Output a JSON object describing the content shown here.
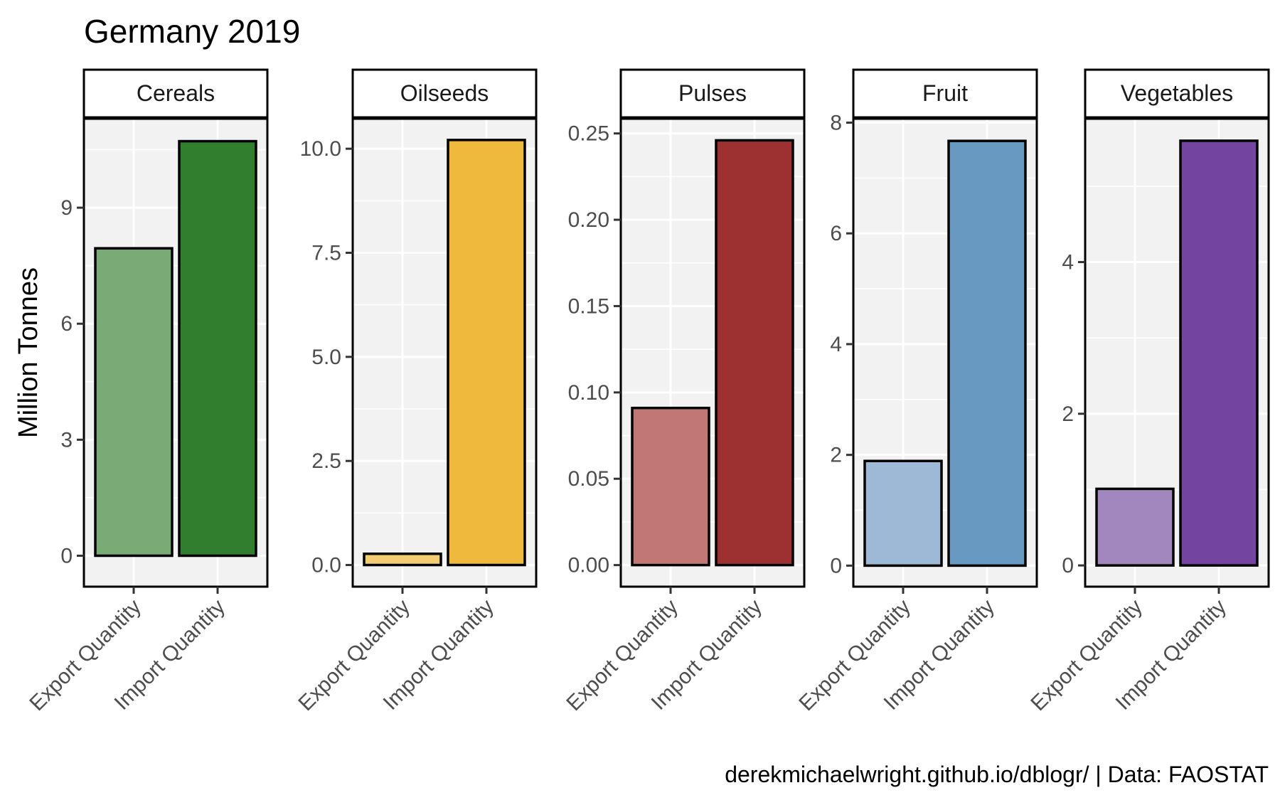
{
  "chart_data": {
    "type": "bar",
    "title": "Germany 2019",
    "ylabel": "Million Tonnes",
    "caption": "derekmichaelwright.github.io/dblogr/ | Data: FAOSTAT",
    "categories": [
      "Export Quantity",
      "Import Quantity"
    ],
    "grid": true,
    "panels": [
      {
        "name": "Cereals",
        "values": [
          7.95,
          10.72
        ],
        "ylim": [
          -0.8,
          11.3
        ],
        "yticks": [
          0,
          3,
          6,
          9
        ],
        "ytick_labels": [
          "0",
          "3",
          "6",
          "9"
        ],
        "colors": [
          "#7aab76",
          "#317e2f"
        ]
      },
      {
        "name": "Oilseeds",
        "values": [
          0.27,
          10.21
        ],
        "ylim": [
          -0.52,
          10.72
        ],
        "yticks": [
          0,
          2.5,
          5,
          7.5,
          10
        ],
        "ytick_labels": [
          "0.0",
          "2.5",
          "5.0",
          "7.5",
          "10.0"
        ],
        "colors": [
          "#f3cd73",
          "#eeb93d"
        ]
      },
      {
        "name": "Pulses",
        "values": [
          0.091,
          0.246
        ],
        "ylim": [
          -0.0125,
          0.2585
        ],
        "yticks": [
          0,
          0.05,
          0.1,
          0.15,
          0.2,
          0.25
        ],
        "ytick_labels": [
          "0.00",
          "0.05",
          "0.10",
          "0.15",
          "0.20",
          "0.25"
        ],
        "colors": [
          "#c07776",
          "#9d3031"
        ]
      },
      {
        "name": "Fruit",
        "values": [
          1.89,
          7.67
        ],
        "ylim": [
          -0.38,
          8.07
        ],
        "yticks": [
          0,
          2,
          4,
          6,
          8
        ],
        "ytick_labels": [
          "0",
          "2",
          "4",
          "6",
          "8"
        ],
        "colors": [
          "#9db9d5",
          "#6899c1"
        ]
      },
      {
        "name": "Vegetables",
        "values": [
          1.01,
          5.6
        ],
        "ylim": [
          -0.28,
          5.89
        ],
        "yticks": [
          0,
          2,
          4
        ],
        "ytick_labels": [
          "0",
          "2",
          "4"
        ],
        "colors": [
          "#a287bf",
          "#7445a0"
        ]
      }
    ]
  }
}
